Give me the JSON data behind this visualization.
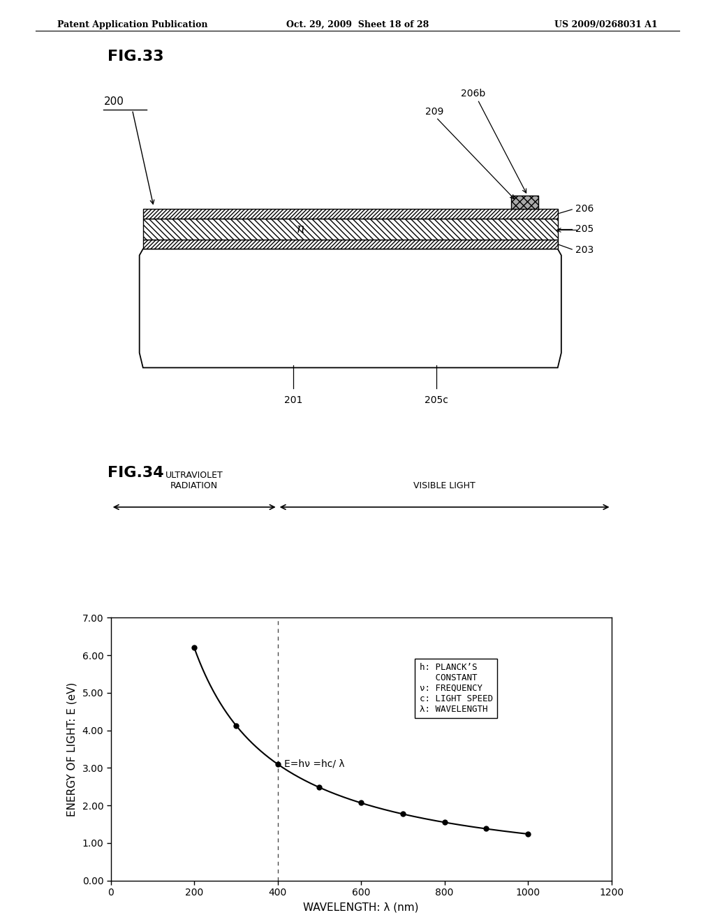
{
  "page_title_left": "Patent Application Publication",
  "page_title_center": "Oct. 29, 2009  Sheet 18 of 28",
  "page_title_right": "US 2009/0268031 A1",
  "fig33_label": "FIG.33",
  "fig34_label": "FIG.34",
  "background_color": "#ffffff",
  "text_color": "#000000",
  "curve_x": [
    200,
    300,
    400,
    500,
    600,
    700,
    800,
    900,
    1000
  ],
  "curve_y": [
    6.2,
    4.13,
    3.1,
    2.48,
    2.07,
    1.77,
    1.55,
    1.38,
    1.24
  ],
  "xlabel": "WAVELENGTH: λ (nm)",
  "ylabel": "ENERGY OF LIGHT: E (eV)",
  "xlim": [
    0,
    1200
  ],
  "ylim": [
    0.0,
    7.0
  ],
  "xticks": [
    0,
    200,
    400,
    600,
    800,
    1000,
    1200
  ],
  "yticks": [
    0.0,
    1.0,
    2.0,
    3.0,
    4.0,
    5.0,
    6.0,
    7.0
  ],
  "ytick_labels": [
    "0.00",
    "1.00",
    "2.00",
    "3.00",
    "4.00",
    "5.00",
    "6.00",
    "7.00"
  ],
  "uv_label": "ULTRAVIOLET\nRADIATION",
  "vis_label": "VISIBLE LIGHT",
  "uv_boundary": 400,
  "equation_text": "E=hν =hc/ λ",
  "legend_text": "h: PLANCK’S\n   CONSTANT\nν: FREQUENCY\nc: LIGHT SPEED\nλ: WAVELENGTH"
}
